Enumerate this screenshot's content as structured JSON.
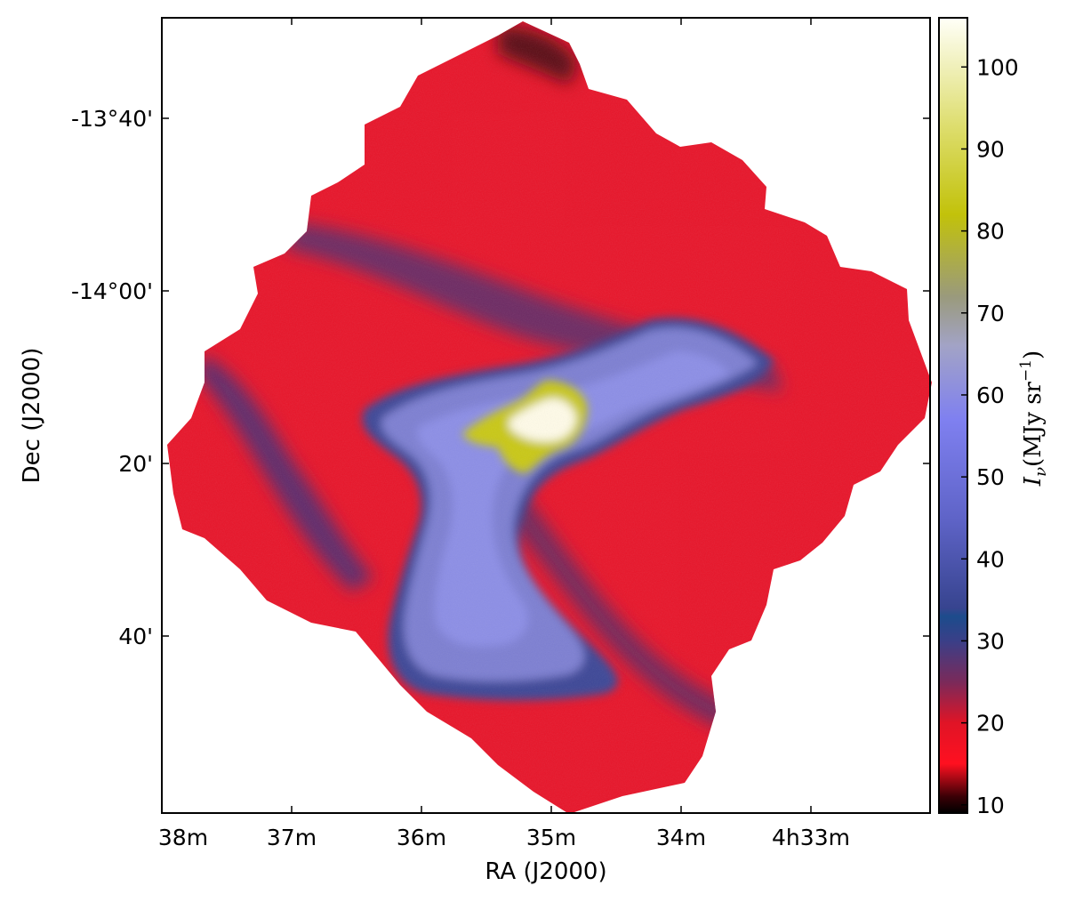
{
  "chart_data": {
    "type": "heatmap",
    "xlabel": "RA (J2000)",
    "ylabel": "Dec (J2000)",
    "x_ticks": [
      "38m",
      "37m",
      "36m",
      "35m",
      "34m",
      "4h33m"
    ],
    "y_ticks": [
      "-13°40'",
      "-14°00'",
      "20'",
      "40'"
    ],
    "colorbar": {
      "label_symbol": "I",
      "label_subscript": "ν",
      "label_unit": "(MJy sr",
      "label_exp": "−1",
      "label_close": ")",
      "ticks": [
        "10",
        "20",
        "30",
        "40",
        "50",
        "60",
        "70",
        "80",
        "90",
        "100"
      ],
      "range": [
        9,
        106
      ],
      "stops": [
        {
          "value": 9,
          "color": "#000000"
        },
        {
          "value": 11,
          "color": "#3a0006"
        },
        {
          "value": 15,
          "color": "#ff1020"
        },
        {
          "value": 20,
          "color": "#e01426"
        },
        {
          "value": 25,
          "color": "#7a2a5a"
        },
        {
          "value": 30,
          "color": "#3a3f88"
        },
        {
          "value": 33,
          "color": "#1c4c8c"
        },
        {
          "value": 34,
          "color": "#37448f"
        },
        {
          "value": 45,
          "color": "#5f64c8"
        },
        {
          "value": 57,
          "color": "#7f80f0"
        },
        {
          "value": 66,
          "color": "#a2a3c6"
        },
        {
          "value": 72,
          "color": "#9a9a7c"
        },
        {
          "value": 82,
          "color": "#c2c20a"
        },
        {
          "value": 93,
          "color": "#dede70"
        },
        {
          "value": 106,
          "color": "#fffff8"
        }
      ]
    },
    "map_regions": {
      "background_level": 17,
      "features": [
        {
          "name": "filament",
          "value": 27
        },
        {
          "name": "diffuse-cloud",
          "value": 50
        },
        {
          "name": "bright-core",
          "value": 88
        },
        {
          "name": "peak",
          "value": 104
        }
      ]
    }
  }
}
